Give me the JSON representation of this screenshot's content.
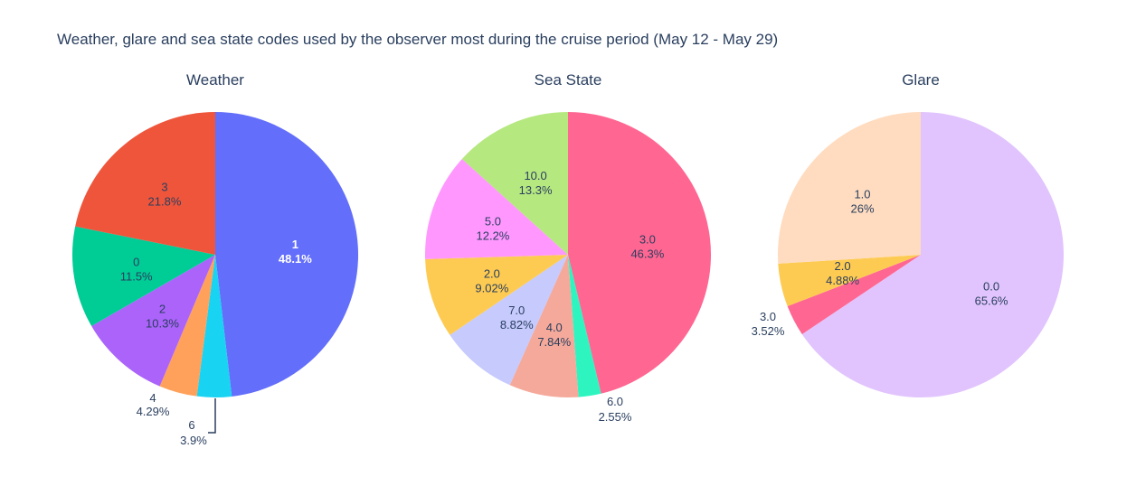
{
  "title": "Weather, glare and sea state codes used by the observer most during the cruise period (May 12 - May 29)",
  "chart_data": [
    {
      "type": "pie",
      "title": "Weather",
      "slices": [
        {
          "label": "1",
          "percent_text": "48.1%",
          "value": 48.1,
          "color": "#636efa",
          "text_color": "#ffffff",
          "bold": true
        },
        {
          "label": "6",
          "percent_text": "3.9%",
          "value": 3.9,
          "color": "#19d3f3",
          "text_color": "#2a3f5f",
          "outside": true
        },
        {
          "label": "4",
          "percent_text": "4.29%",
          "value": 4.29,
          "color": "#ffa15a",
          "text_color": "#2a3f5f",
          "outside": true
        },
        {
          "label": "2",
          "percent_text": "10.3%",
          "value": 10.3,
          "color": "#ab63fa",
          "text_color": "#2a3f5f"
        },
        {
          "label": "0",
          "percent_text": "11.5%",
          "value": 11.5,
          "color": "#00cc96",
          "text_color": "#2a3f5f"
        },
        {
          "label": "3",
          "percent_text": "21.8%",
          "value": 21.8,
          "color": "#ef553b",
          "text_color": "#2a3f5f"
        }
      ]
    },
    {
      "type": "pie",
      "title": "Sea State",
      "slices": [
        {
          "label": "3.0",
          "percent_text": "46.3%",
          "value": 46.3,
          "color": "#ff6692",
          "text_color": "#2a3f5f"
        },
        {
          "label": "6.0",
          "percent_text": "2.55%",
          "value": 2.55,
          "color": "#2ef5c0",
          "text_color": "#2a3f5f",
          "outside": true
        },
        {
          "label": "4.0",
          "percent_text": "7.84%",
          "value": 7.84,
          "color": "#f5a99a",
          "text_color": "#2a3f5f"
        },
        {
          "label": "7.0",
          "percent_text": "8.82%",
          "value": 8.82,
          "color": "#c6cafd",
          "text_color": "#2a3f5f"
        },
        {
          "label": "2.0",
          "percent_text": "9.02%",
          "value": 9.02,
          "color": "#fecb52",
          "text_color": "#2a3f5f"
        },
        {
          "label": "5.0",
          "percent_text": "12.2%",
          "value": 12.2,
          "color": "#ff97ff",
          "text_color": "#2a3f5f"
        },
        {
          "label": "10.0",
          "percent_text": "13.3%",
          "value": 13.3,
          "color": "#b6e880",
          "text_color": "#2a3f5f"
        }
      ]
    },
    {
      "type": "pie",
      "title": "Glare",
      "slices": [
        {
          "label": "0.0",
          "percent_text": "65.6%",
          "value": 65.6,
          "color": "#e1c4fd",
          "text_color": "#2a3f5f"
        },
        {
          "label": "3.0",
          "percent_text": "3.52%",
          "value": 3.52,
          "color": "#ff6692",
          "text_color": "#2a3f5f",
          "outside": true
        },
        {
          "label": "2.0",
          "percent_text": "4.88%",
          "value": 4.88,
          "color": "#fecb52",
          "text_color": "#2a3f5f"
        },
        {
          "label": "1.0",
          "percent_text": "26%",
          "value": 26,
          "color": "#ffdcbf",
          "text_color": "#2a3f5f"
        }
      ]
    }
  ]
}
